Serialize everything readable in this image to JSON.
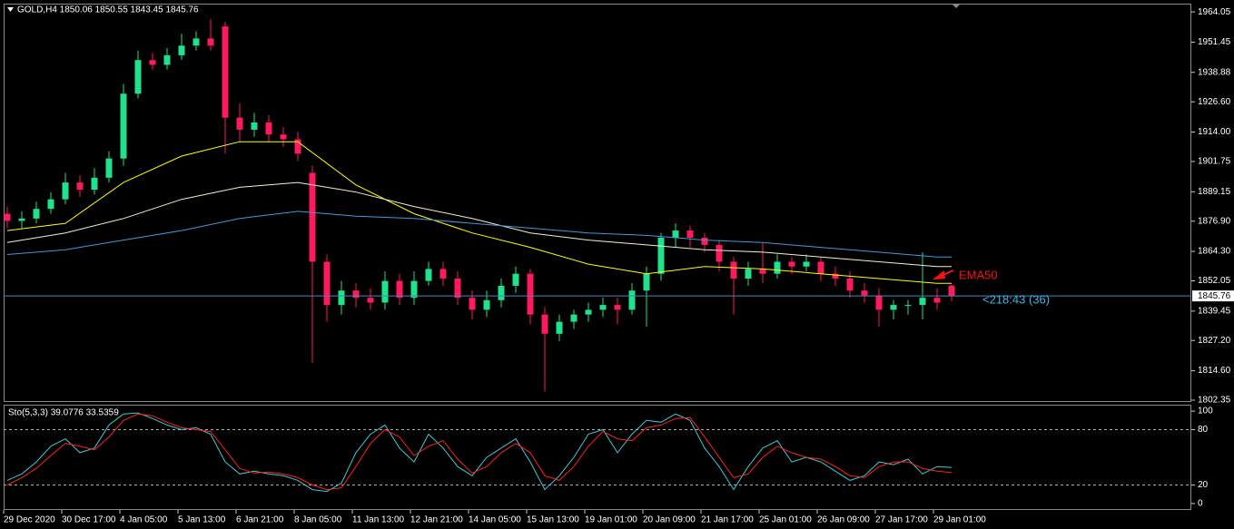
{
  "chart_data": [
    {
      "type": "candlestick",
      "title": "GOLD,H4  1850.06 1850.55 1843.45 1845.76",
      "up_color": "#1fe28f",
      "down_color": "#ff1a5e",
      "xlim": [
        -0.25,
        81.5
      ],
      "ylim": [
        1801.6,
        1967.5
      ],
      "yticks": [
        1964.05,
        1951.45,
        1938.88,
        {
          "value": 1926.6,
          "label": "1926.60"
        },
        {
          "value": 1914,
          "label": "1914.00"
        },
        1901.75,
        1889.15,
        {
          "value": 1876.9,
          "label": "1876.90"
        },
        {
          "value": 1864.3,
          "label": "1864.30"
        },
        1852.05,
        1839.45,
        {
          "value": 1827.2,
          "label": "1827.20"
        },
        {
          "value": 1814.6,
          "label": "1814.60"
        },
        1802.35
      ],
      "open": [
        1880,
        1877,
        1878,
        1882,
        1886,
        1893,
        1890,
        1895,
        1903,
        1930,
        1944,
        1942,
        1946,
        1950,
        1953,
        1958,
        1920,
        1915,
        1918,
        1913,
        1911,
        1897,
        1860,
        1842,
        1848,
        1845,
        1843,
        1852,
        1845,
        1852,
        1857,
        1853,
        1845,
        1840,
        1844,
        1850,
        1855,
        1838,
        1830,
        1835,
        1838,
        1840,
        1842,
        1840,
        1848,
        1855,
        1870,
        1873,
        1870,
        1867,
        1860,
        1853,
        1857,
        1855,
        1860,
        1858,
        1860,
        1855,
        1853,
        1848,
        1846,
        1840,
        1842,
        1842,
        1845,
        1850.06
      ],
      "high": [
        1883,
        1881,
        1885,
        1889,
        1897,
        1896,
        1899,
        1906,
        1934,
        1948,
        1947,
        1949,
        1955,
        1956,
        1961,
        1960,
        1926,
        1922,
        1921,
        1916,
        1914,
        1900,
        1863,
        1852,
        1851,
        1849,
        1856,
        1855,
        1856,
        1860,
        1860,
        1856,
        1848,
        1848,
        1853,
        1858,
        1857,
        1841,
        1838,
        1840,
        1843,
        1845,
        1845,
        1851,
        1858,
        1872,
        1876,
        1875,
        1872,
        1869,
        1862,
        1860,
        1868,
        1863,
        1862,
        1863,
        1862,
        1858,
        1856,
        1851,
        1849,
        1844,
        1844,
        1864,
        1849,
        1850.55
      ],
      "low": [
        1874,
        1874,
        1876,
        1880,
        1884,
        1887,
        1888,
        1893,
        1900,
        1928,
        1940,
        1940,
        1944,
        1948,
        1948,
        1905,
        1910,
        1912,
        1910,
        1908,
        1902,
        1818,
        1835,
        1838,
        1841,
        1840,
        1840,
        1842,
        1842,
        1850,
        1850,
        1842,
        1836,
        1837,
        1841,
        1847,
        1834,
        1806,
        1827,
        1832,
        1835,
        1837,
        1834,
        1838,
        1833,
        1852,
        1866,
        1866,
        1864,
        1856,
        1838,
        1850,
        1851,
        1853,
        1855,
        1856,
        1852,
        1850,
        1845,
        1843,
        1833,
        1836,
        1838,
        1836,
        1840,
        1843.45
      ],
      "close": [
        1877,
        1878,
        1882,
        1886,
        1893,
        1890,
        1895,
        1903,
        1930,
        1944,
        1942,
        1946,
        1950,
        1953,
        1950,
        1920,
        1915,
        1918,
        1913,
        1911,
        1905,
        1860,
        1842,
        1848,
        1845,
        1843,
        1852,
        1845,
        1852,
        1857,
        1853,
        1845,
        1840,
        1844,
        1850,
        1855,
        1838,
        1830,
        1835,
        1838,
        1840,
        1842,
        1840,
        1848,
        1855,
        1870,
        1873,
        1870,
        1867,
        1860,
        1853,
        1857,
        1855,
        1860,
        1858,
        1860,
        1855,
        1853,
        1848,
        1846,
        1840,
        1842,
        1842,
        1845,
        1843,
        1845.76
      ],
      "series": [
        {
          "color": "#ffff00",
          "x": [
            0,
            4,
            8,
            12,
            16,
            20,
            24,
            28,
            32,
            36,
            40,
            44,
            48,
            52,
            56,
            60,
            64,
            65
          ],
          "values": [
            1873,
            1876,
            1893,
            1904,
            1910,
            1910,
            1892,
            1880,
            1872,
            1866,
            1859,
            1855,
            1858,
            1857,
            1855,
            1853,
            1851,
            1851
          ]
        },
        {
          "color": "#f5f0c8",
          "x": [
            0,
            4,
            8,
            12,
            16,
            20,
            24,
            28,
            32,
            36,
            40,
            44,
            48,
            52,
            56,
            60,
            64,
            65
          ],
          "values": [
            1868,
            1872,
            1878,
            1886,
            1891,
            1893,
            1889,
            1883,
            1878,
            1872,
            1869,
            1867,
            1865,
            1864,
            1862,
            1860,
            1858,
            1858
          ]
        },
        {
          "color": "#3d9be0",
          "x": [
            0,
            4,
            8,
            12,
            16,
            20,
            24,
            28,
            32,
            36,
            40,
            44,
            48,
            52,
            56,
            60,
            64,
            65
          ],
          "values": [
            1863,
            1865,
            1869,
            1873,
            1878,
            1881,
            1879,
            1878,
            1876,
            1874,
            1872,
            1871,
            1869,
            1868,
            1866,
            1864,
            1862,
            1862
          ]
        }
      ],
      "last_price": 1845.76,
      "last_price_color": "#4a86b8",
      "annotations": [
        {
          "text": "EMA50",
          "color": "#ff1010"
        },
        {
          "text": "<218:43 (36)",
          "color": "#38b6e8"
        }
      ]
    },
    {
      "type": "line",
      "title": "Sto(5,3,3) 39.0776 33.5359",
      "xlim": [
        -0.25,
        81.5
      ],
      "ylim": [
        -7,
        106
      ],
      "yticks": [
        100,
        80,
        20,
        0
      ],
      "levels": [
        20,
        80
      ],
      "xticks": [
        {
          "value": 0,
          "label": "29 Dec 2020"
        },
        {
          "value": 4,
          "label": "30 Dec 17:00"
        },
        {
          "value": 8,
          "label": "4 Jan 05:00"
        },
        {
          "value": 12,
          "label": "5 Jan 13:00"
        },
        {
          "value": 16,
          "label": "6 Jan 21:00"
        },
        {
          "value": 20,
          "label": "8 Jan 05:00"
        },
        {
          "value": 24,
          "label": "11 Jan 13:00"
        },
        {
          "value": 28,
          "label": "12 Jan 21:00"
        },
        {
          "value": 32,
          "label": "14 Jan 05:00"
        },
        {
          "value": 36,
          "label": "15 Jan 13:00"
        },
        {
          "value": 40,
          "label": "19 Jan 01:00"
        },
        {
          "value": 44,
          "label": "20 Jan 09:00"
        },
        {
          "value": 48,
          "label": "21 Jan 17:00"
        },
        {
          "value": 52,
          "label": "25 Jan 01:00"
        },
        {
          "value": 56,
          "label": "26 Jan 09:00"
        },
        {
          "value": 60,
          "label": "27 Jan 17:00"
        },
        {
          "value": 64,
          "label": "29 Jan 01:00"
        }
      ],
      "series": [
        {
          "color": "#3fc8d8",
          "values": [
            25,
            32,
            45,
            62,
            70,
            55,
            60,
            85,
            97,
            98,
            92,
            85,
            80,
            82,
            75,
            45,
            32,
            35,
            32,
            30,
            25,
            15,
            13,
            22,
            55,
            75,
            85,
            60,
            45,
            75,
            60,
            40,
            30,
            50,
            60,
            70,
            45,
            15,
            30,
            50,
            75,
            80,
            55,
            75,
            90,
            88,
            97,
            90,
            60,
            40,
            15,
            40,
            60,
            68,
            45,
            50,
            45,
            35,
            25,
            30,
            45,
            42,
            48,
            32,
            40,
            39.0776
          ]
        },
        {
          "color": "#ff2020",
          "values": [
            20,
            28,
            38,
            52,
            65,
            62,
            58,
            72,
            90,
            97,
            95,
            88,
            82,
            80,
            78,
            58,
            38,
            33,
            34,
            32,
            28,
            20,
            15,
            17,
            40,
            65,
            80,
            72,
            52,
            62,
            68,
            48,
            33,
            40,
            55,
            65,
            55,
            30,
            25,
            40,
            62,
            78,
            70,
            68,
            82,
            85,
            92,
            93,
            72,
            50,
            28,
            32,
            50,
            62,
            55,
            50,
            48,
            40,
            30,
            28,
            40,
            45,
            45,
            38,
            35,
            33.5359
          ]
        }
      ]
    }
  ]
}
